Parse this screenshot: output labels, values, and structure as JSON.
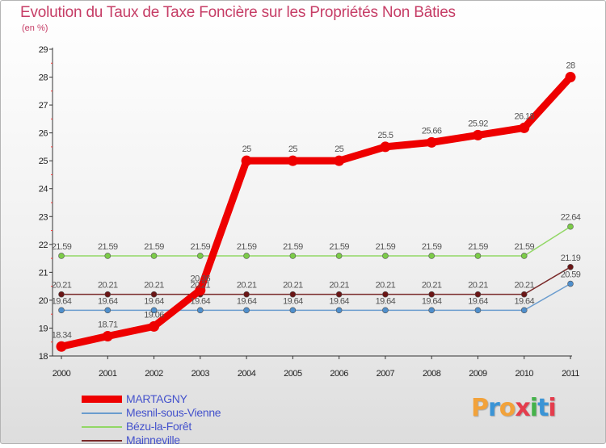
{
  "title": "Evolution du Taux de Taxe Foncière sur les Propriétés Non Bâties",
  "unit": "(en %)",
  "brand": "Proxiti",
  "brand_colors": [
    "#f2a23a",
    "#3a94d6",
    "#f2a23a",
    "#e43d4d",
    "#44b24a",
    "#3a94d6",
    "#e43d4d"
  ],
  "chart_data": {
    "type": "line",
    "title": "Evolution du Taux de Taxe Foncière sur les Propriétés Non Bâties",
    "ylabel": "(en %)",
    "xlabel": "",
    "ylim": [
      18,
      29
    ],
    "y_ticks": [
      "18",
      "19",
      "20",
      "21",
      "22",
      "23",
      "24",
      "25",
      "26",
      "27",
      "28",
      "29"
    ],
    "categories": [
      "2000",
      "2001",
      "2002",
      "2003",
      "2004",
      "2005",
      "2006",
      "2007",
      "2008",
      "2009",
      "2010",
      "2011"
    ],
    "legend_position": "bottom-left",
    "series": [
      {
        "name": "MARTAGNY",
        "color": "#ee0000",
        "point_color": "#ee0000",
        "weight": "thick",
        "values": [
          18.34,
          18.71,
          19.06,
          20.36,
          25,
          25,
          25,
          25.5,
          25.66,
          25.92,
          26.18,
          28
        ],
        "labels": [
          "18.34",
          "18.71",
          "19.06",
          "20.36",
          "25",
          "25",
          "25",
          "25.5",
          "25.66",
          "25.92",
          "26.18",
          "28"
        ]
      },
      {
        "name": "Mesnil-sous-Vienne",
        "color": "#6a9cce",
        "point_color": "#4f8fcc",
        "weight": "thin",
        "values": [
          19.64,
          19.64,
          19.64,
          19.64,
          19.64,
          19.64,
          19.64,
          19.64,
          19.64,
          19.64,
          19.64,
          20.59
        ],
        "labels": [
          "19.64",
          "19.64",
          "19.64",
          "19.64",
          "19.64",
          "19.64",
          "19.64",
          "19.64",
          "19.64",
          "19.64",
          "19.64",
          "20.59"
        ]
      },
      {
        "name": "Bézu-la-Forêt",
        "color": "#92d766",
        "point_color": "#7ccb48",
        "weight": "thin",
        "values": [
          21.59,
          21.59,
          21.59,
          21.59,
          21.59,
          21.59,
          21.59,
          21.59,
          21.59,
          21.59,
          21.59,
          22.64
        ],
        "labels": [
          "21.59",
          "21.59",
          "21.59",
          "21.59",
          "21.59",
          "21.59",
          "21.59",
          "21.59",
          "21.59",
          "21.59",
          "21.59",
          "22.64"
        ]
      },
      {
        "name": "Mainneville",
        "color": "#7a2a2a",
        "point_color": "#6a1616",
        "weight": "thin",
        "values": [
          20.21,
          20.21,
          20.21,
          20.21,
          20.21,
          20.21,
          20.21,
          20.21,
          20.21,
          20.21,
          20.21,
          21.19
        ],
        "labels": [
          "20.21",
          "20.21",
          "20.21",
          "20.21",
          "20.21",
          "20.21",
          "20.21",
          "20.21",
          "20.21",
          "20.21",
          "20.21",
          "21.19"
        ]
      }
    ]
  }
}
